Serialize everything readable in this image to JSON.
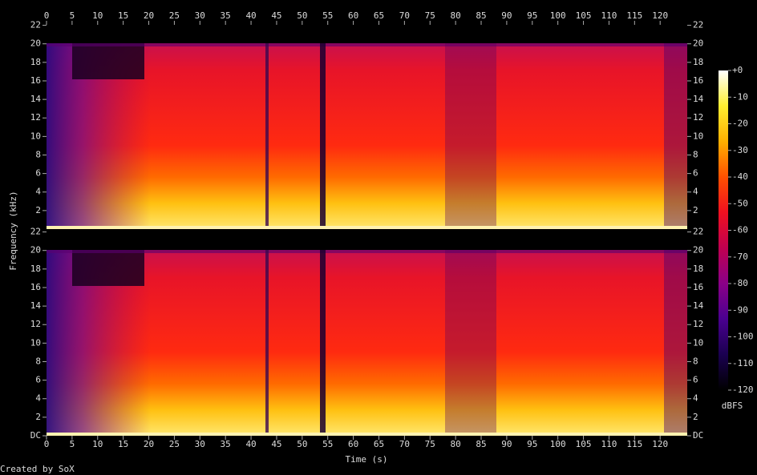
{
  "chart_data": {
    "type": "spectrogram",
    "x_label": "Time (s)",
    "y_label": "Frequency (kHz)",
    "xlim": [
      0,
      125.3
    ],
    "xticks": [
      0,
      5,
      10,
      15,
      20,
      25,
      30,
      35,
      40,
      45,
      50,
      55,
      60,
      65,
      70,
      75,
      80,
      85,
      90,
      95,
      100,
      105,
      110,
      115,
      120
    ],
    "channels": [
      {
        "ylim": [
          0,
          22.05
        ],
        "yticks": [
          2,
          4,
          6,
          8,
          10,
          12,
          14,
          16,
          18,
          20,
          22
        ]
      },
      {
        "ylim": [
          0,
          22.05
        ],
        "yticks": [
          {
            "value": 0,
            "label": "DC"
          },
          2,
          4,
          6,
          8,
          10,
          12,
          14,
          16,
          18,
          20,
          22
        ]
      }
    ],
    "colorbar": {
      "label": "dBFS",
      "clim": [
        -120,
        0
      ],
      "ticks": [
        {
          "value": 0,
          "label": "+0"
        },
        -10,
        -20,
        -30,
        -40,
        -50,
        -60,
        -70,
        -80,
        -90,
        -100,
        -110,
        -120
      ],
      "colors": [
        "#ffffff",
        "#ffee30",
        "#ffb000",
        "#ff5000",
        "#f01020",
        "#c00050",
        "#8a0088",
        "#4a0090",
        "#1a0050",
        "#000000"
      ]
    },
    "credit": "Created by SoX"
  }
}
